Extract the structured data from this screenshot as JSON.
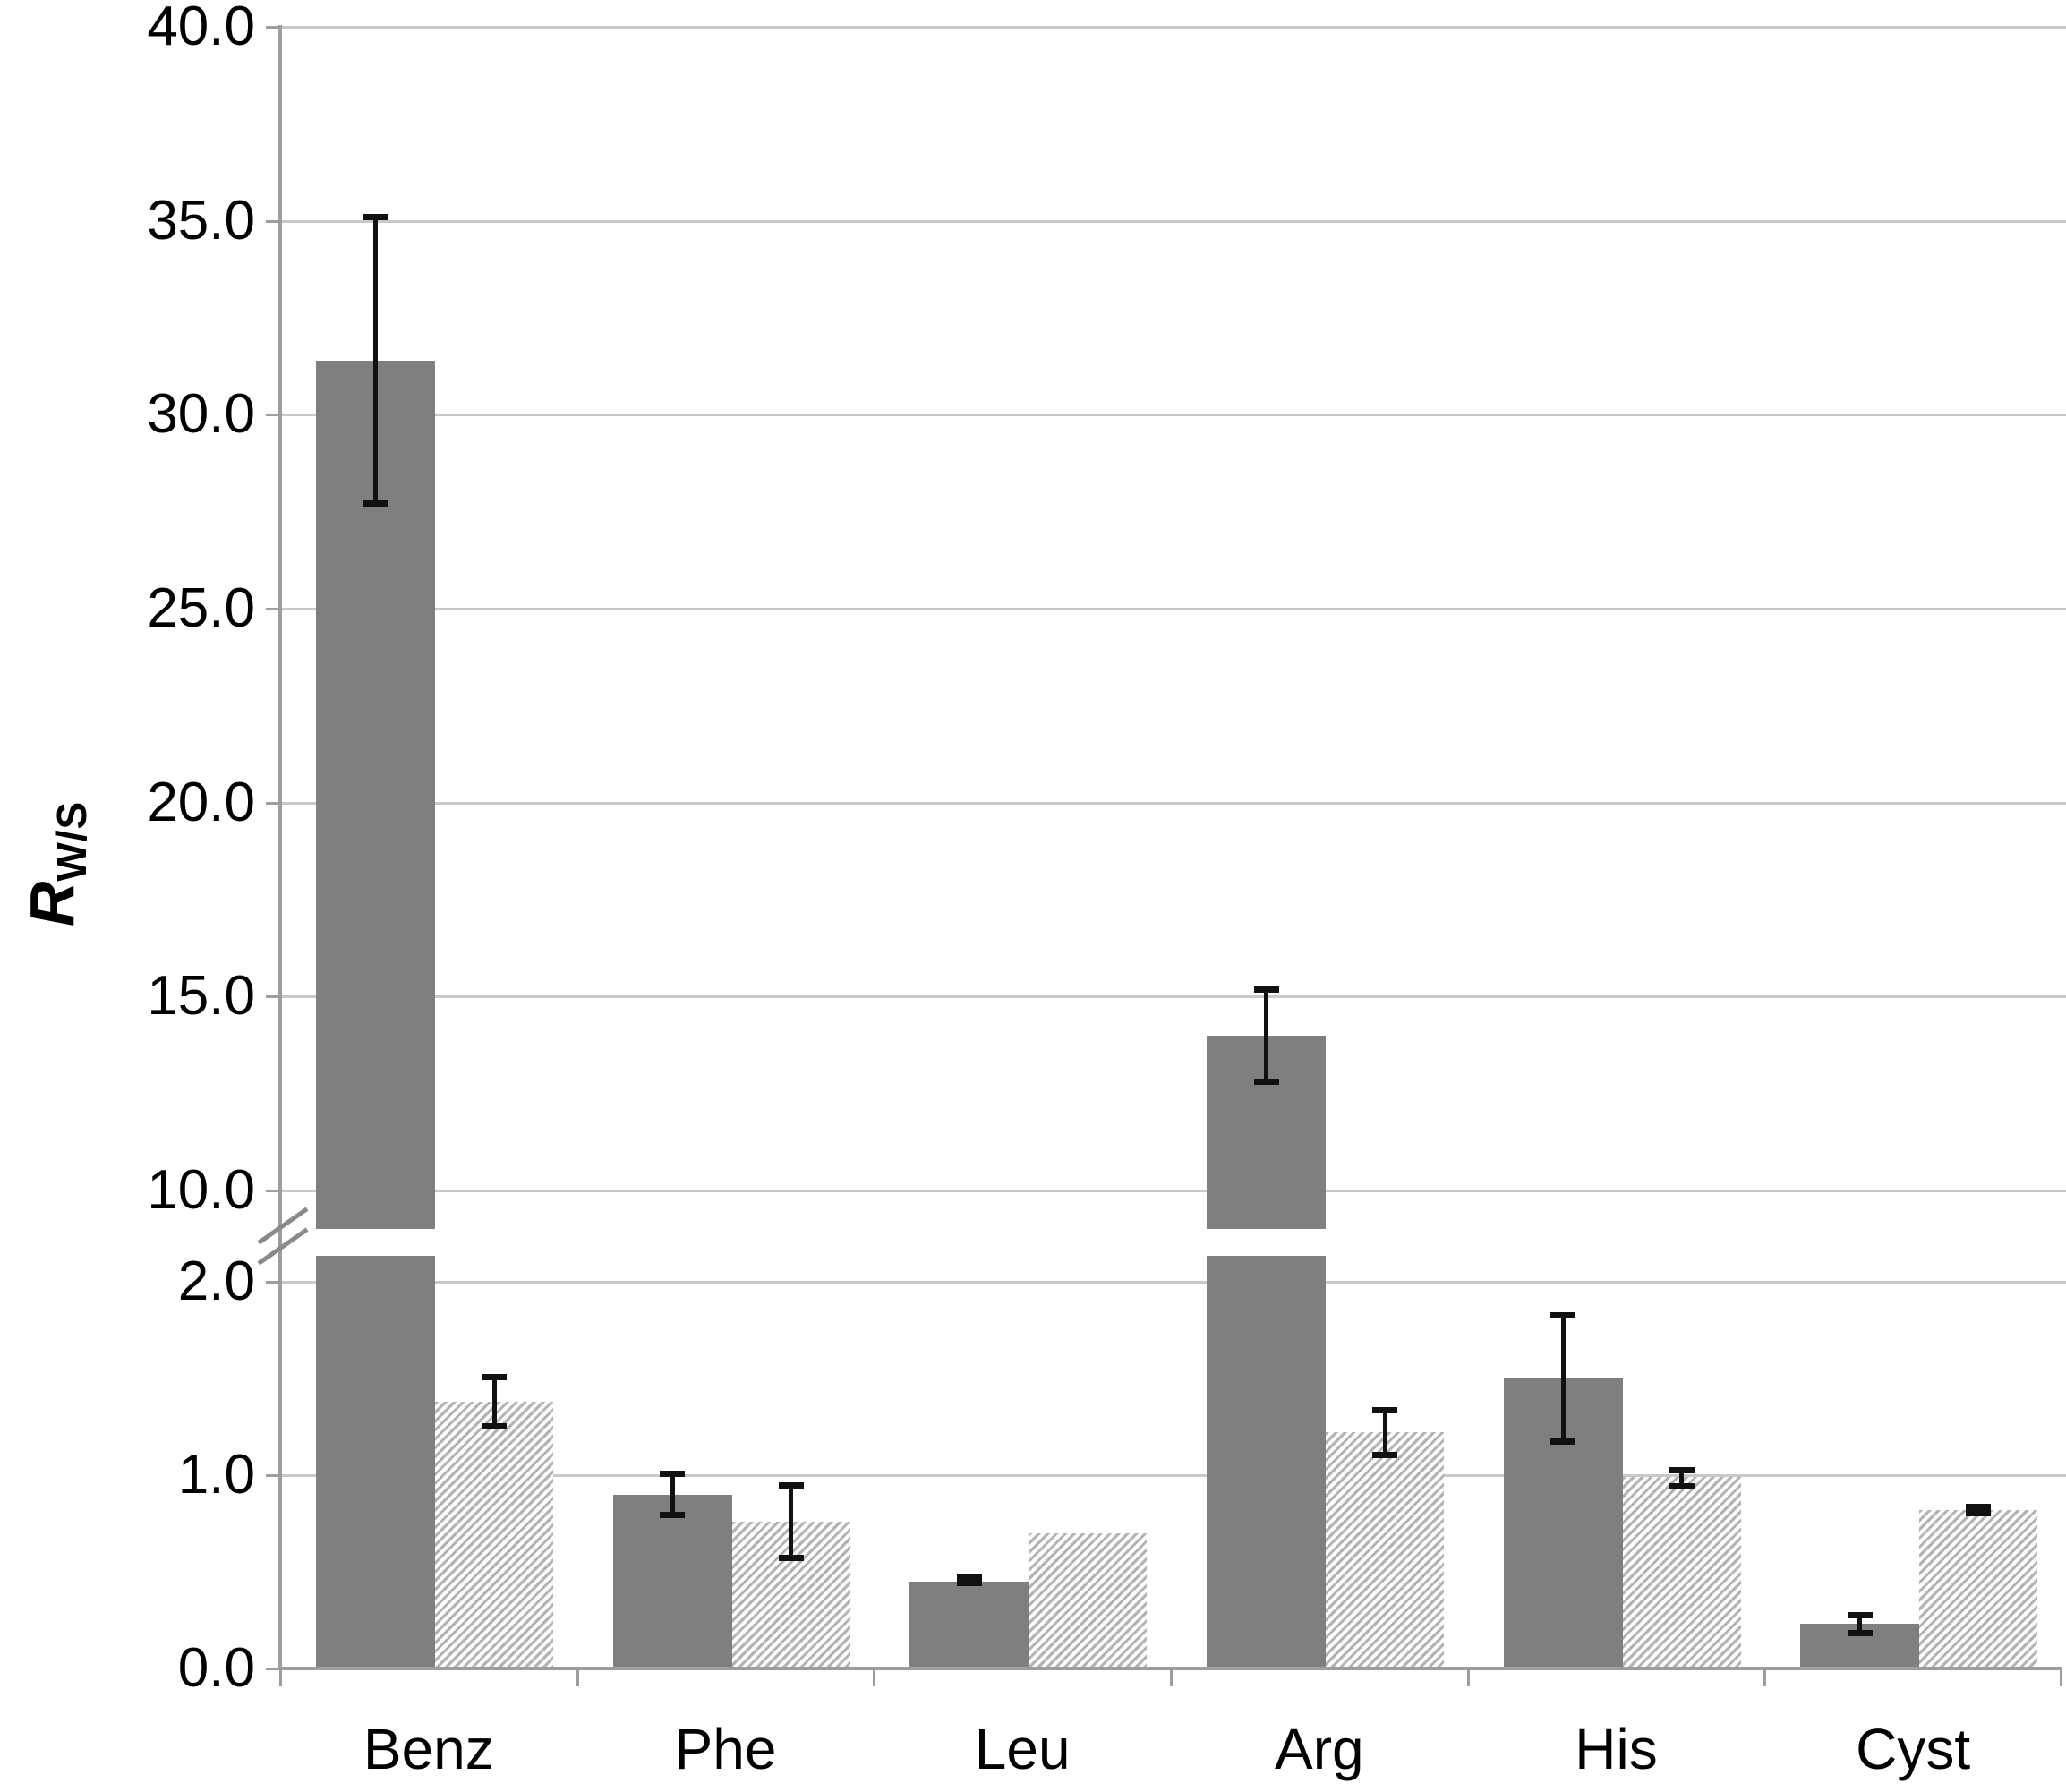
{
  "y_axis": {
    "title_main": "R",
    "title_sub": "W/S",
    "top_tick_labels": [
      "40.0",
      "35.0",
      "30.0",
      "25.0",
      "20.0",
      "15.0",
      "10.0"
    ],
    "bottom_tick_labels": [
      "2.0",
      "1.0",
      "0.0"
    ]
  },
  "chart_data": {
    "type": "bar",
    "title": "",
    "ylabel": "R_W/S",
    "xlabel": "",
    "legend": "none",
    "grid": "horizontal",
    "categories": [
      "Benz",
      "Phe",
      "Leu",
      "Arg",
      "His",
      "Cyst"
    ],
    "series": [
      {
        "name": "solid-gray-bars",
        "style": "solid",
        "values": [
          31.4,
          0.9,
          0.45,
          14.0,
          1.5,
          0.23
        ],
        "error_low": [
          27.7,
          0.79,
          0.44,
          12.8,
          1.17,
          0.18
        ],
        "error_high": [
          35.1,
          1.01,
          0.47,
          15.2,
          1.83,
          0.28
        ]
      },
      {
        "name": "hatched-bars",
        "style": "hatched",
        "values": [
          1.38,
          0.76,
          0.7,
          1.22,
          0.99,
          0.82
        ],
        "error_low": [
          1.25,
          0.57,
          null,
          1.1,
          0.94,
          0.8
        ],
        "error_high": [
          1.51,
          0.95,
          null,
          1.34,
          1.03,
          0.84
        ]
      }
    ],
    "broken_axis": {
      "top_section_range": [
        9.0,
        40.0
      ],
      "top_ticks": [
        40,
        35,
        30,
        25,
        20,
        15,
        10
      ],
      "bottom_section_range": [
        0.0,
        2.13
      ],
      "bottom_ticks": [
        2.0,
        1.0,
        0.0
      ]
    }
  },
  "colors": {
    "solid_bar": "#7f7f7f",
    "hatch_stripe": "#b2b2b2",
    "hatch_bg": "#fcfcfc",
    "gridline": "#c9c9c9",
    "axis": "#9d9d9d",
    "break_mark": "#8a8a8a",
    "error_bar": "#111111",
    "text": "#000000",
    "background": "#ffffff"
  }
}
